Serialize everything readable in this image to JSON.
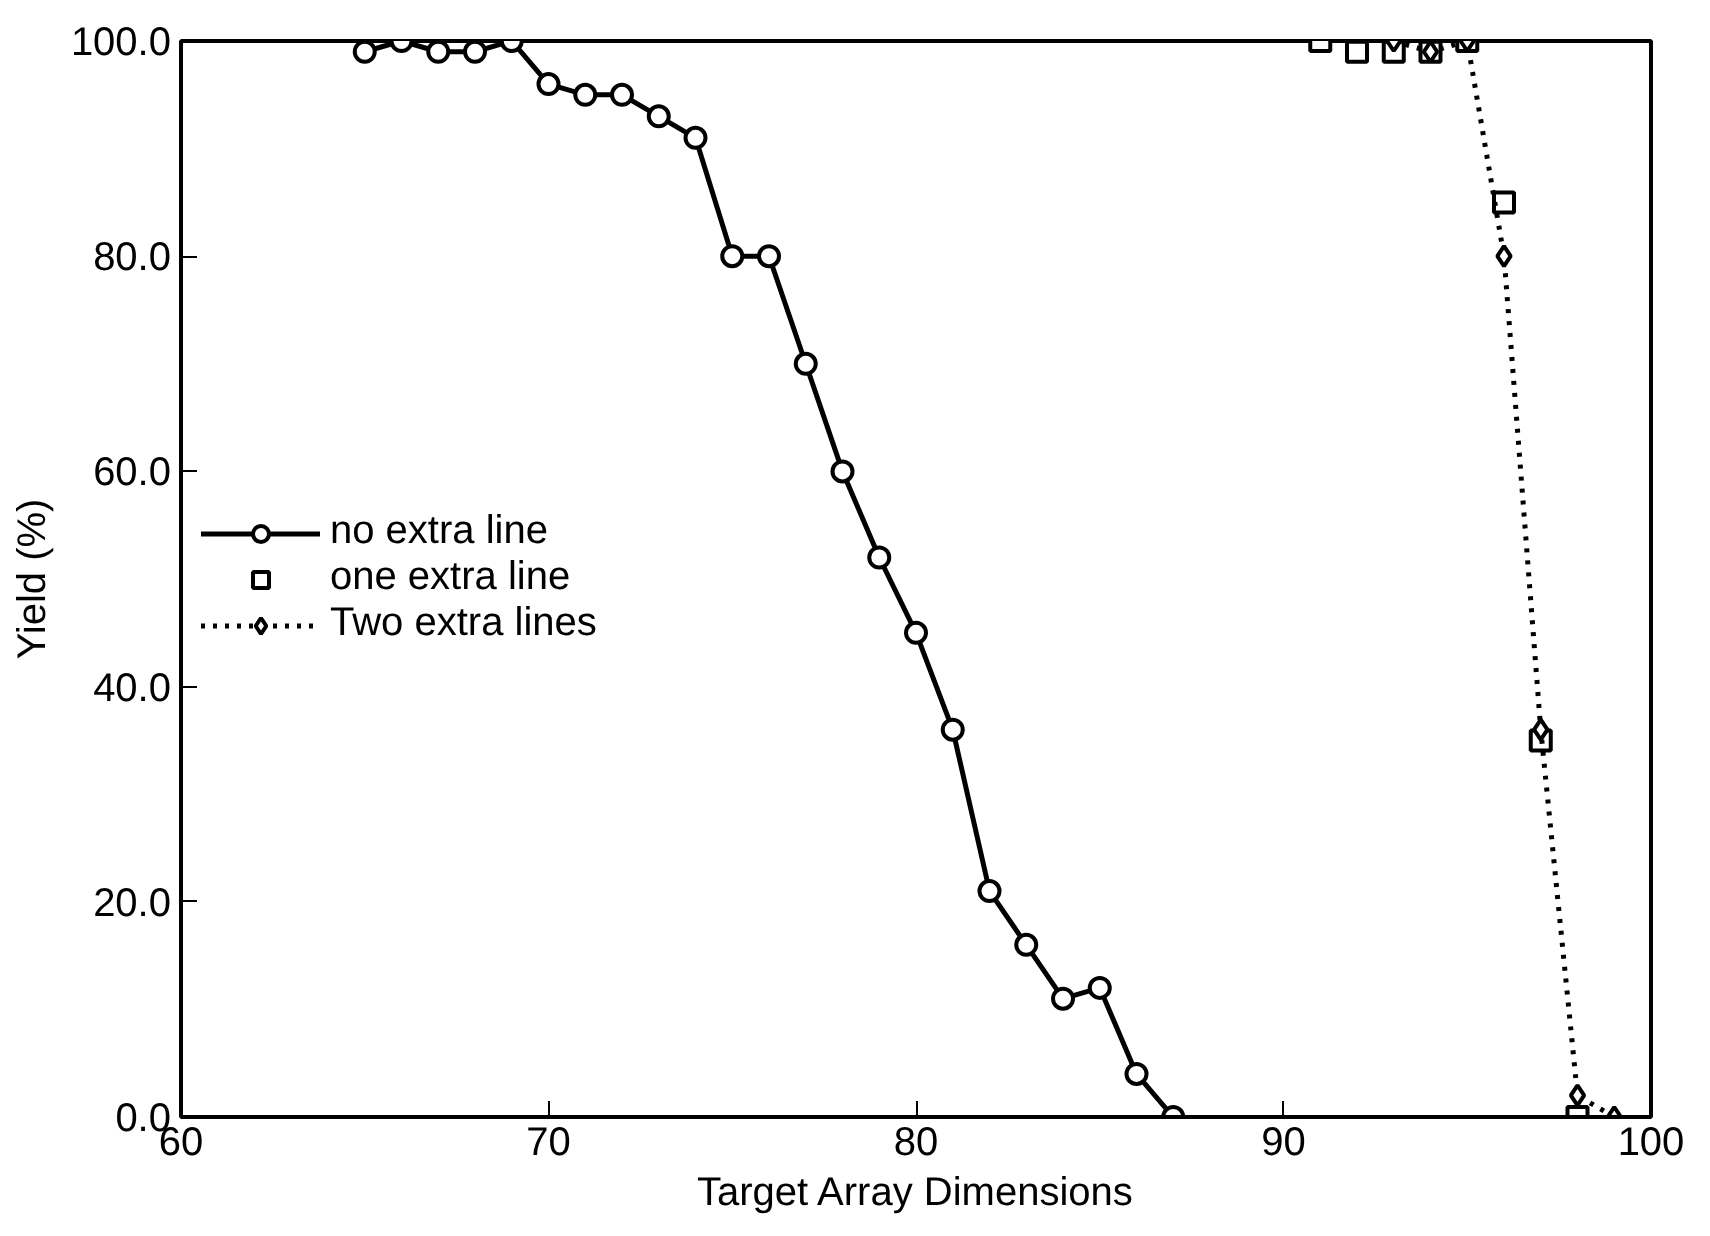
{
  "chart_data": {
    "type": "line",
    "xlabel": "Target Array Dimensions",
    "ylabel": "Yield (%)",
    "xlim": [
      60,
      100
    ],
    "xticks": [
      60,
      70,
      80,
      90,
      100
    ],
    "ylim": [
      0,
      100
    ],
    "yticks": [
      {
        "value": 0,
        "label": "0.0"
      },
      {
        "value": 20,
        "label": "20.0"
      },
      {
        "value": 40,
        "label": "40.0"
      },
      {
        "value": 60,
        "label": "60.0"
      },
      {
        "value": 80,
        "label": "80.0"
      },
      {
        "value": 100,
        "label": "100.0"
      }
    ],
    "grid": false,
    "legend": "left",
    "series": [
      {
        "name": "no extra line",
        "color": "#000000",
        "marker": "circle",
        "line_style": "solid",
        "x": [
          65,
          66,
          67,
          68,
          69,
          70,
          71,
          72,
          73,
          74,
          75,
          76,
          77,
          78,
          79,
          80,
          81,
          82,
          83,
          84,
          85,
          86,
          87
        ],
        "values": [
          99,
          100,
          99,
          99,
          100,
          96,
          95,
          95,
          93,
          91,
          80,
          80,
          70,
          60,
          52,
          45,
          36,
          21,
          16,
          11,
          12,
          4,
          0
        ]
      },
      {
        "name": "one extra line",
        "color": "#000000",
        "type": "scatter",
        "marker": "square",
        "x": [
          91,
          92,
          93,
          94,
          95,
          96,
          97,
          98
        ],
        "values": [
          100,
          99,
          99,
          99,
          100,
          85,
          35,
          0
        ]
      },
      {
        "name": "Two extra lines",
        "color": "#000000",
        "marker": "diamond",
        "line_style": "dotted",
        "x": [
          93,
          94,
          95,
          96,
          97,
          98,
          99
        ],
        "values": [
          100,
          99,
          100,
          80,
          36,
          2,
          0
        ]
      }
    ]
  }
}
